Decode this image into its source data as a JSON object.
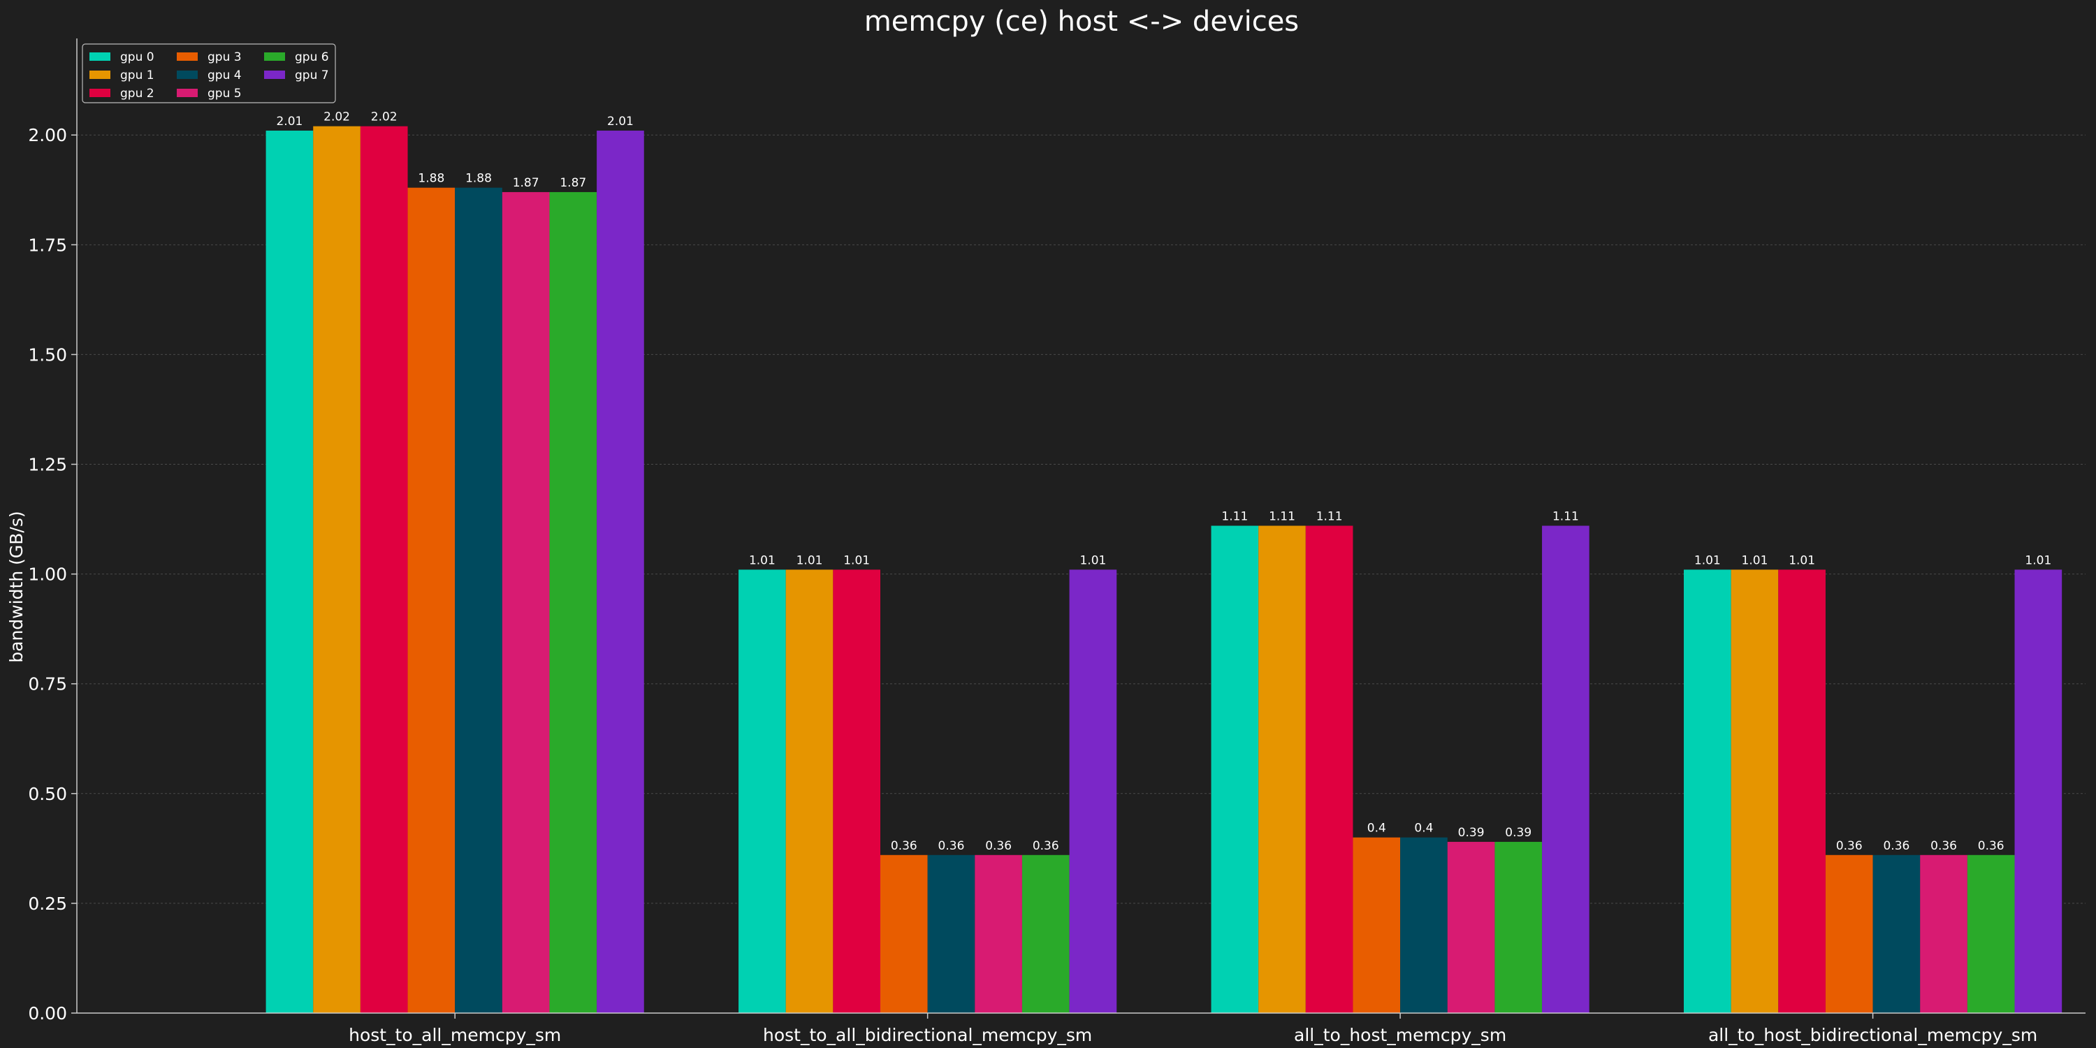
{
  "chart_data": {
    "type": "bar",
    "title": "memcpy (ce) host <-> devices",
    "xlabel": "",
    "ylabel": "bandwidth (GB/s)",
    "ylim": [
      0,
      2.22
    ],
    "yticks": [
      "0.00",
      "0.25",
      "0.50",
      "0.75",
      "1.00",
      "1.25",
      "1.50",
      "1.75",
      "2.00"
    ],
    "grid": true,
    "legend_position": "top-left",
    "categories": [
      "host_to_all_memcpy_sm",
      "host_to_all_bidirectional_memcpy_sm",
      "all_to_host_memcpy_sm",
      "all_to_host_bidirectional_memcpy_sm"
    ],
    "series": [
      {
        "name": "gpu 0",
        "color": "#00d1b2",
        "values": [
          2.01,
          1.01,
          1.11,
          1.01
        ],
        "labels": [
          "2.01",
          "1.01",
          "1.11",
          "1.01"
        ]
      },
      {
        "name": "gpu 1",
        "color": "#e69500",
        "values": [
          2.02,
          1.01,
          1.11,
          1.01
        ],
        "labels": [
          "2.02",
          "1.01",
          "1.11",
          "1.01"
        ]
      },
      {
        "name": "gpu 2",
        "color": "#e00040",
        "values": [
          2.02,
          1.01,
          1.11,
          1.01
        ],
        "labels": [
          "2.02",
          "1.01",
          "1.11",
          "1.01"
        ]
      },
      {
        "name": "gpu 3",
        "color": "#e85d00",
        "values": [
          1.88,
          0.36,
          0.4,
          0.36
        ],
        "labels": [
          "1.88",
          "0.36",
          "0.4",
          "0.36"
        ]
      },
      {
        "name": "gpu 4",
        "color": "#004a5e",
        "values": [
          1.88,
          0.36,
          0.4,
          0.36
        ],
        "labels": [
          "1.88",
          "0.36",
          "0.4",
          "0.36"
        ]
      },
      {
        "name": "gpu 5",
        "color": "#d81b72",
        "values": [
          1.87,
          0.36,
          0.39,
          0.36
        ],
        "labels": [
          "1.87",
          "0.36",
          "0.39",
          "0.36"
        ]
      },
      {
        "name": "gpu 6",
        "color": "#2aaa2a",
        "values": [
          1.87,
          0.36,
          0.39,
          0.36
        ],
        "labels": [
          "1.87",
          "0.36",
          "0.39",
          "0.36"
        ]
      },
      {
        "name": "gpu 7",
        "color": "#7b27c8",
        "values": [
          2.01,
          1.01,
          1.11,
          1.01
        ],
        "labels": [
          "2.01",
          "1.01",
          "1.11",
          "1.01"
        ]
      }
    ]
  }
}
